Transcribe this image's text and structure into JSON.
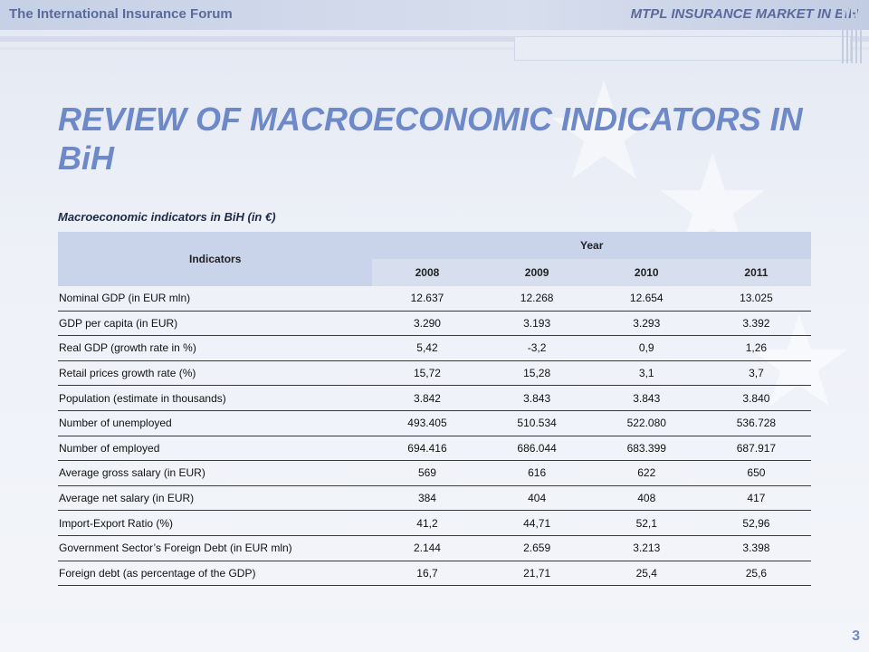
{
  "header": {
    "left_title": "The International Insurance Forum",
    "right_title": "MTPL INSURANCE MARKET IN BiH"
  },
  "title": "REVIEW OF MACROECONOMIC INDICATORS IN BiH",
  "subtitle": "Macroeconomic indicators in BiH (in €)",
  "table": {
    "indicator_header": "Indicators",
    "year_header": "Year",
    "years": [
      "2008",
      "2009",
      "2010",
      "2011"
    ],
    "rows": [
      {
        "name": "Nominal GDP (in EUR mln)",
        "values": [
          "12.637",
          "12.268",
          "12.654",
          "13.025"
        ]
      },
      {
        "name": "GDP per capita (in EUR)",
        "values": [
          "3.290",
          "3.193",
          "3.293",
          "3.392"
        ]
      },
      {
        "name": "Real GDP (growth rate in %)",
        "values": [
          "5,42",
          "-3,2",
          "0,9",
          "1,26"
        ]
      },
      {
        "name": "Retail prices growth rate (%)",
        "values": [
          "15,72",
          "15,28",
          "3,1",
          "3,7"
        ]
      },
      {
        "name": "Population (estimate in thousands)",
        "values": [
          "3.842",
          "3.843",
          "3.843",
          "3.840"
        ]
      },
      {
        "name": "Number of unemployed",
        "values": [
          "493.405",
          "510.534",
          "522.080",
          "536.728"
        ]
      },
      {
        "name": "Number of employed",
        "values": [
          "694.416",
          "686.044",
          "683.399",
          "687.917"
        ]
      },
      {
        "name": "Average gross salary (in EUR)",
        "values": [
          "569",
          "616",
          "622",
          "650"
        ]
      },
      {
        "name": "Average net salary (in EUR)",
        "values": [
          "384",
          "404",
          "408",
          "417"
        ]
      },
      {
        "name": "Import-Export Ratio (%)",
        "values": [
          "41,2",
          "44,71",
          "52,1",
          "52,96"
        ]
      },
      {
        "name": "Government Sector’s Foreign Debt (in EUR mln)",
        "values": [
          "2.144",
          "2.659",
          "3.213",
          "3.398"
        ]
      },
      {
        "name": "Foreign debt (as percentage of the GDP)",
        "values": [
          "16,7",
          "21,71",
          "25,4",
          "25,6"
        ]
      }
    ]
  },
  "page_number": "3"
}
